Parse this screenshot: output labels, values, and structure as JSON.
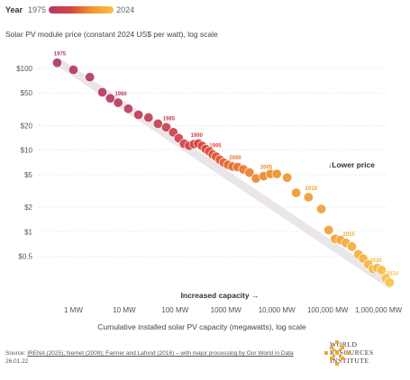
{
  "legend": {
    "label": "Year",
    "start": "1975",
    "end": "2024"
  },
  "colors": {
    "start": "#b0396b",
    "mid": "#d8443e",
    "late": "#f0962a",
    "end": "#f8c24a",
    "trend": "#e6dfe3"
  },
  "chart_data": {
    "type": "scatter",
    "title": "Solar PV module price (constant 2024 US$ per watt), log scale",
    "xlabel": "Cumulative installed solar PV capacity (megawatts), log scale",
    "ylabel": "Solar PV module price (constant 2024 US$ per watt)",
    "x_scale": "log",
    "y_scale": "log",
    "xlim": [
      0.2,
      1500000
    ],
    "ylim": [
      0.18,
      170
    ],
    "x_ticks": [
      {
        "value": 1,
        "label": "1 MW"
      },
      {
        "value": 10,
        "label": "10 MW"
      },
      {
        "value": 100,
        "label": "100 MW"
      },
      {
        "value": 1000,
        "label": "1000 MW"
      },
      {
        "value": 10000,
        "label": "10,000 MW"
      },
      {
        "value": 100000,
        "label": "100,000 MW"
      },
      {
        "value": 1000000,
        "label": "1,000,000 MW"
      }
    ],
    "y_ticks": [
      {
        "value": 100,
        "label": "$100"
      },
      {
        "value": 50,
        "label": "$50"
      },
      {
        "value": 20,
        "label": "$20"
      },
      {
        "value": 10,
        "label": "$10"
      },
      {
        "value": 5,
        "label": "$5"
      },
      {
        "value": 2,
        "label": "$2"
      },
      {
        "value": 1,
        "label": "$1"
      },
      {
        "value": 0.5,
        "label": "$0.5"
      }
    ],
    "grid": "horizontal",
    "annotations": {
      "lower_price": "↓Lower price",
      "increased_capacity": "Increased capacity →"
    },
    "points": [
      {
        "year": 1975,
        "x": 0.48,
        "y": 117
      },
      {
        "year": 1976,
        "x": 1.0,
        "y": 96
      },
      {
        "year": 1977,
        "x": 2.1,
        "y": 78
      },
      {
        "year": 1978,
        "x": 3.7,
        "y": 51
      },
      {
        "year": 1979,
        "x": 5.3,
        "y": 43
      },
      {
        "year": 1980,
        "x": 7.6,
        "y": 38
      },
      {
        "year": 1981,
        "x": 12,
        "y": 32
      },
      {
        "year": 1982,
        "x": 19,
        "y": 27
      },
      {
        "year": 1983,
        "x": 30,
        "y": 25
      },
      {
        "year": 1984,
        "x": 46,
        "y": 21
      },
      {
        "year": 1985,
        "x": 67,
        "y": 19
      },
      {
        "year": 1986,
        "x": 92,
        "y": 16.5
      },
      {
        "year": 1987,
        "x": 118,
        "y": 14
      },
      {
        "year": 1988,
        "x": 150,
        "y": 12
      },
      {
        "year": 1989,
        "x": 190,
        "y": 11.3
      },
      {
        "year": 1990,
        "x": 235,
        "y": 11.8
      },
      {
        "year": 1991,
        "x": 285,
        "y": 12
      },
      {
        "year": 1992,
        "x": 340,
        "y": 11.2
      },
      {
        "year": 1993,
        "x": 400,
        "y": 10.3
      },
      {
        "year": 1994,
        "x": 470,
        "y": 9.6
      },
      {
        "year": 1995,
        "x": 550,
        "y": 8.8
      },
      {
        "year": 1996,
        "x": 640,
        "y": 8.3
      },
      {
        "year": 1997,
        "x": 760,
        "y": 7.6
      },
      {
        "year": 1998,
        "x": 910,
        "y": 7.0
      },
      {
        "year": 1999,
        "x": 1100,
        "y": 6.6
      },
      {
        "year": 2000,
        "x": 1350,
        "y": 6.3
      },
      {
        "year": 2001,
        "x": 1700,
        "y": 6.2
      },
      {
        "year": 2002,
        "x": 2200,
        "y": 5.8
      },
      {
        "year": 2003,
        "x": 2900,
        "y": 5.3
      },
      {
        "year": 2004,
        "x": 3900,
        "y": 4.5
      },
      {
        "year": 2005,
        "x": 5500,
        "y": 4.8
      },
      {
        "year": 2006,
        "x": 7500,
        "y": 5.1
      },
      {
        "year": 2007,
        "x": 10000,
        "y": 5.1
      },
      {
        "year": 2008,
        "x": 16000,
        "y": 4.6
      },
      {
        "year": 2009,
        "x": 24000,
        "y": 3.0
      },
      {
        "year": 2010,
        "x": 42000,
        "y": 2.65
      },
      {
        "year": 2011,
        "x": 75000,
        "y": 1.9
      },
      {
        "year": 2012,
        "x": 105000,
        "y": 1.05
      },
      {
        "year": 2013,
        "x": 140000,
        "y": 0.82
      },
      {
        "year": 2014,
        "x": 180000,
        "y": 0.79
      },
      {
        "year": 2015,
        "x": 230000,
        "y": 0.73
      },
      {
        "year": 2016,
        "x": 300000,
        "y": 0.66
      },
      {
        "year": 2017,
        "x": 400000,
        "y": 0.53
      },
      {
        "year": 2018,
        "x": 500000,
        "y": 0.47
      },
      {
        "year": 2019,
        "x": 630000,
        "y": 0.4
      },
      {
        "year": 2020,
        "x": 780000,
        "y": 0.35
      },
      {
        "year": 2021,
        "x": 950000,
        "y": 0.36
      },
      {
        "year": 2022,
        "x": 1150000,
        "y": 0.34
      },
      {
        "year": 2023,
        "x": 1400000,
        "y": 0.27
      },
      {
        "year": 2024,
        "x": 1650000,
        "y": 0.24
      }
    ],
    "year_labels": [
      1975,
      1980,
      1985,
      1990,
      1995,
      2000,
      2005,
      2010,
      2015,
      2020,
      2024
    ]
  },
  "footer": {
    "source_prefix": "Source: ",
    "source": "IRENA (2025); Nemet (2009); Farmer and Lafond (2016) – with major processing by Our World in Data",
    "date": "26.01.22"
  },
  "logo": {
    "line1": "WORLD",
    "line2": "RESOURCES",
    "line3": "INSTITUTE"
  }
}
